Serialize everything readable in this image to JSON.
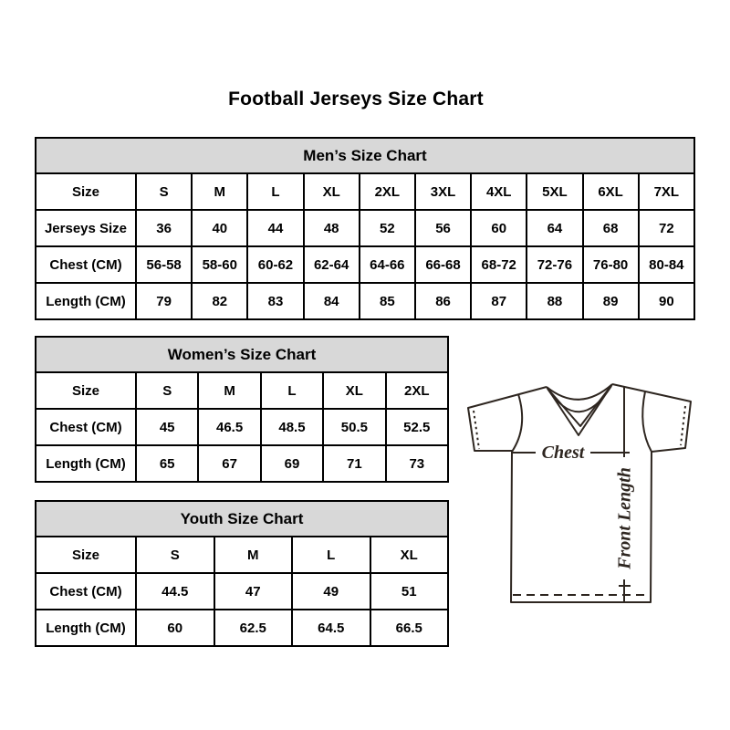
{
  "title": "Football Jerseys Size Chart",
  "tables": {
    "men": {
      "header": "Men’s Size Chart",
      "rows": [
        [
          "Size",
          "S",
          "M",
          "L",
          "XL",
          "2XL",
          "3XL",
          "4XL",
          "5XL",
          "6XL",
          "7XL"
        ],
        [
          "Jerseys Size",
          "36",
          "40",
          "44",
          "48",
          "52",
          "56",
          "60",
          "64",
          "68",
          "72"
        ],
        [
          "Chest (CM)",
          "56-58",
          "58-60",
          "60-62",
          "62-64",
          "64-66",
          "66-68",
          "68-72",
          "72-76",
          "76-80",
          "80-84"
        ],
        [
          "Length (CM)",
          "79",
          "82",
          "83",
          "84",
          "85",
          "86",
          "87",
          "88",
          "89",
          "90"
        ]
      ]
    },
    "women": {
      "header": "Women’s Size Chart",
      "rows": [
        [
          "Size",
          "S",
          "M",
          "L",
          "XL",
          "2XL"
        ],
        [
          "Chest (CM)",
          "45",
          "46.5",
          "48.5",
          "50.5",
          "52.5"
        ],
        [
          "Length (CM)",
          "65",
          "67",
          "69",
          "71",
          "73"
        ]
      ]
    },
    "youth": {
      "header": "Youth Size Chart",
      "rows": [
        [
          "Size",
          "S",
          "M",
          "L",
          "XL"
        ],
        [
          "Chest (CM)",
          "44.5",
          "47",
          "49",
          "51"
        ],
        [
          "Length (CM)",
          "60",
          "62.5",
          "64.5",
          "66.5"
        ]
      ]
    }
  },
  "diagram": {
    "chest_label": "Chest",
    "front_length_label": "Front Length"
  },
  "colors": {
    "table_header_bg": "#d8d8d8",
    "table_border": "#000000",
    "jersey_outline": "#2e2620",
    "text": "#000000"
  }
}
